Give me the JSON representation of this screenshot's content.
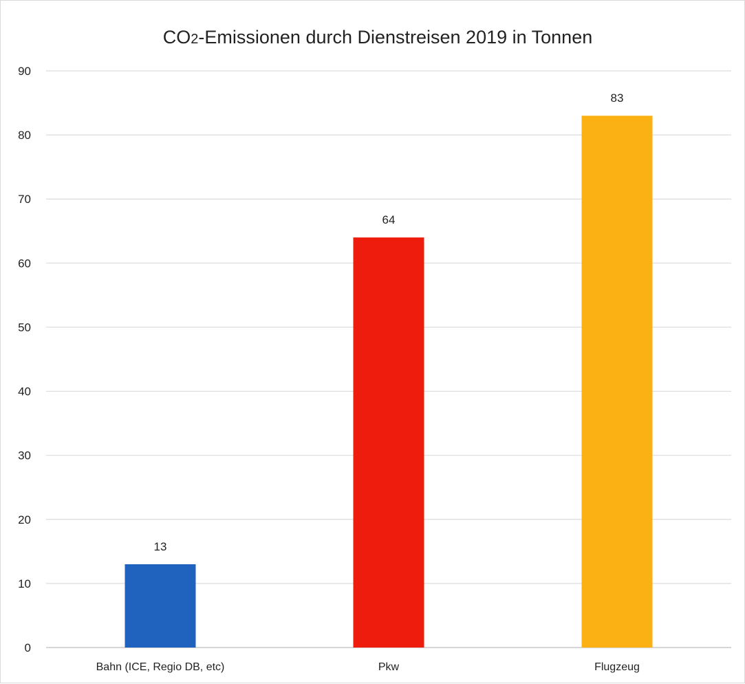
{
  "chart_data": {
    "type": "bar",
    "title_parts": [
      "CO",
      "2",
      "-Emissionen durch Dienstreisen 2019 in Tonnen"
    ],
    "xlabel": "",
    "ylabel": "",
    "categories": [
      "Bahn (ICE, Regio DB, etc)",
      "Pkw",
      "Flugzeug"
    ],
    "values": [
      13,
      64,
      83
    ],
    "value_labels": [
      "13",
      "64",
      "83"
    ],
    "colors": [
      "#1f63bf",
      "#ee1c0c",
      "#fbb114"
    ],
    "ylim": [
      0,
      90
    ],
    "yticks": [
      0,
      10,
      20,
      30,
      40,
      50,
      60,
      70,
      80,
      90
    ],
    "grid": true,
    "legend": "none"
  }
}
